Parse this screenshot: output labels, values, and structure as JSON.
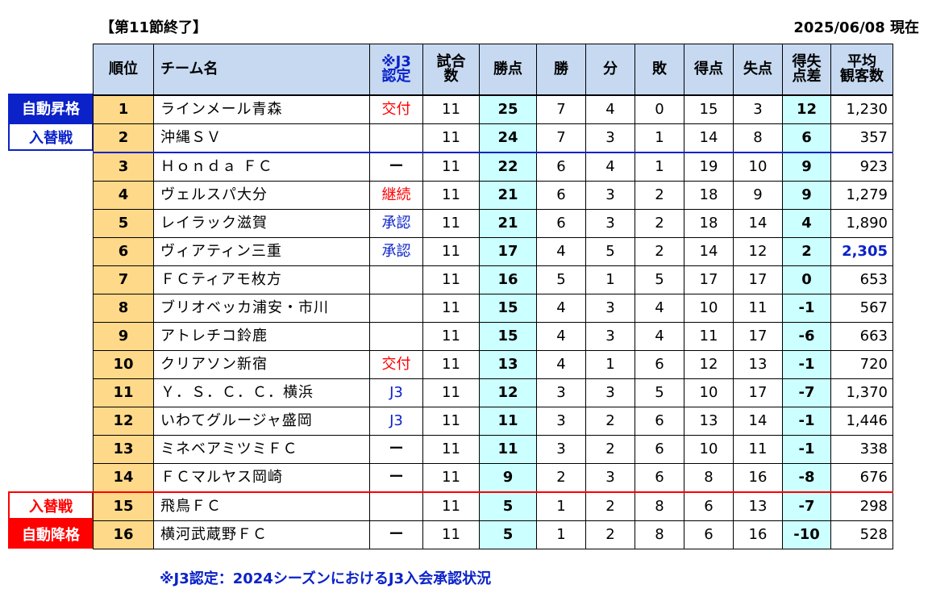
{
  "header": {
    "title": "【第11節終了】",
    "date": "2025/06/08 現在"
  },
  "side_labels": {
    "auto_up": "自動昇格",
    "playoff_top": "入替戦",
    "playoff_bottom": "入替戦",
    "auto_down": "自動降格"
  },
  "columns": {
    "rank": "順位",
    "team": "チーム名",
    "j3_line1": "※J3",
    "j3_line2": "認定",
    "played_line1": "試合",
    "played_line2": "数",
    "points": "勝点",
    "win": "勝",
    "draw": "分",
    "loss": "敗",
    "gf": "得点",
    "ga": "失点",
    "gd_line1": "得失",
    "gd_line2": "点差",
    "att_line1": "平均",
    "att_line2": "観客数"
  },
  "rows": [
    {
      "rank": "1",
      "team": "ラインメール青森",
      "j3": "交付",
      "played": "11",
      "points": "25",
      "win": "7",
      "draw": "4",
      "loss": "0",
      "gf": "15",
      "ga": "3",
      "gd": "12",
      "att": "1,230"
    },
    {
      "rank": "2",
      "team": "沖縄ＳＶ",
      "j3": "",
      "played": "11",
      "points": "24",
      "win": "7",
      "draw": "3",
      "loss": "1",
      "gf": "14",
      "ga": "8",
      "gd": "6",
      "att": "357"
    },
    {
      "rank": "3",
      "team": "Ｈｏｎｄａ ＦＣ",
      "j3": "ー",
      "played": "11",
      "points": "22",
      "win": "6",
      "draw": "4",
      "loss": "1",
      "gf": "19",
      "ga": "10",
      "gd": "9",
      "att": "923"
    },
    {
      "rank": "4",
      "team": "ヴェルスパ大分",
      "j3": "継続",
      "played": "11",
      "points": "21",
      "win": "6",
      "draw": "3",
      "loss": "2",
      "gf": "18",
      "ga": "9",
      "gd": "9",
      "att": "1,279"
    },
    {
      "rank": "5",
      "team": "レイラック滋賀",
      "j3": "承認",
      "played": "11",
      "points": "21",
      "win": "6",
      "draw": "3",
      "loss": "2",
      "gf": "18",
      "ga": "14",
      "gd": "4",
      "att": "1,890"
    },
    {
      "rank": "6",
      "team": "ヴィアティン三重",
      "j3": "承認",
      "played": "11",
      "points": "17",
      "win": "4",
      "draw": "5",
      "loss": "2",
      "gf": "14",
      "ga": "12",
      "gd": "2",
      "att": "2,305"
    },
    {
      "rank": "7",
      "team": "ＦＣティアモ枚方",
      "j3": "",
      "played": "11",
      "points": "16",
      "win": "5",
      "draw": "1",
      "loss": "5",
      "gf": "17",
      "ga": "17",
      "gd": "0",
      "att": "653"
    },
    {
      "rank": "8",
      "team": "ブリオベッカ浦安・市川",
      "j3": "",
      "played": "11",
      "points": "15",
      "win": "4",
      "draw": "3",
      "loss": "4",
      "gf": "10",
      "ga": "11",
      "gd": "-1",
      "att": "567"
    },
    {
      "rank": "9",
      "team": "アトレチコ鈴鹿",
      "j3": "",
      "played": "11",
      "points": "15",
      "win": "4",
      "draw": "3",
      "loss": "4",
      "gf": "11",
      "ga": "17",
      "gd": "-6",
      "att": "663"
    },
    {
      "rank": "10",
      "team": "クリアソン新宿",
      "j3": "交付",
      "played": "11",
      "points": "13",
      "win": "4",
      "draw": "1",
      "loss": "6",
      "gf": "12",
      "ga": "13",
      "gd": "-1",
      "att": "720"
    },
    {
      "rank": "11",
      "team": "Ｙ．Ｓ．Ｃ．Ｃ．横浜",
      "j3": "J3",
      "played": "11",
      "points": "12",
      "win": "3",
      "draw": "3",
      "loss": "5",
      "gf": "10",
      "ga": "17",
      "gd": "-7",
      "att": "1,370"
    },
    {
      "rank": "12",
      "team": "いわてグルージャ盛岡",
      "j3": "J3",
      "played": "11",
      "points": "11",
      "win": "3",
      "draw": "2",
      "loss": "6",
      "gf": "13",
      "ga": "14",
      "gd": "-1",
      "att": "1,446"
    },
    {
      "rank": "13",
      "team": "ミネベアミツミＦＣ",
      "j3": "ー",
      "played": "11",
      "points": "11",
      "win": "3",
      "draw": "2",
      "loss": "6",
      "gf": "10",
      "ga": "11",
      "gd": "-1",
      "att": "338"
    },
    {
      "rank": "14",
      "team": "ＦＣマルヤス岡崎",
      "j3": "ー",
      "played": "11",
      "points": "9",
      "win": "2",
      "draw": "3",
      "loss": "6",
      "gf": "8",
      "ga": "16",
      "gd": "-8",
      "att": "676"
    },
    {
      "rank": "15",
      "team": "飛鳥ＦＣ",
      "j3": "",
      "played": "11",
      "points": "5",
      "win": "1",
      "draw": "2",
      "loss": "8",
      "gf": "6",
      "ga": "13",
      "gd": "-7",
      "att": "298"
    },
    {
      "rank": "16",
      "team": "横河武蔵野ＦＣ",
      "j3": "ー",
      "played": "11",
      "points": "5",
      "win": "1",
      "draw": "2",
      "loss": "8",
      "gf": "6",
      "ga": "16",
      "gd": "-10",
      "att": "528"
    }
  ],
  "j3_colors": {
    "交付": "red",
    "継続": "red",
    "承認": "blue",
    "J3": "blue",
    "ー": "dash"
  },
  "highlight_attendance_rank": "6",
  "footnote": "※J3認定：2024シーズンにおけるJ3入会承認状況"
}
